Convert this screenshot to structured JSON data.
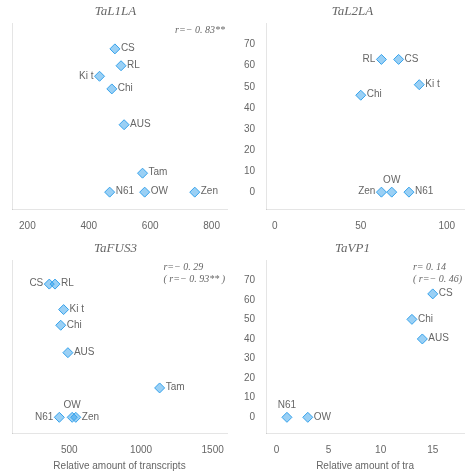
{
  "chart_data": [
    {
      "type": "scatter",
      "title": "TaL1LA",
      "xlim": [
        150,
        850
      ],
      "ylim": [
        -8,
        80
      ],
      "xticks": [
        200,
        400,
        600,
        800
      ],
      "tick_labels": "x",
      "grid": false,
      "annotation": "r=− 0. 83**",
      "series": [
        {
          "marker": "diamond",
          "x": [
            485,
            505,
            435,
            475,
            515,
            575,
            468,
            582,
            745
          ],
          "values": [
            68,
            60,
            55,
            49,
            32,
            9,
            0,
            0,
            0
          ],
          "labels": [
            "CS",
            "RL",
            "Ki t",
            "Chi",
            "AUS",
            "Tam",
            "N61",
            "OW",
            "Zen"
          ]
        }
      ]
    },
    {
      "type": "scatter",
      "title": "TaL2LA",
      "xlim": [
        -5,
        110
      ],
      "ylim": [
        -8,
        80
      ],
      "xticks": [
        0,
        50,
        100
      ],
      "yticks": [
        0,
        10,
        20,
        30,
        40,
        50,
        60,
        70
      ],
      "grid": false,
      "series": [
        {
          "marker": "diamond",
          "x": [
            62,
            72,
            84,
            50,
            62,
            68,
            78
          ],
          "values": [
            63,
            63,
            51,
            46,
            0,
            0,
            0
          ],
          "labels": [
            "RL",
            "CS",
            "Ki t",
            "Chi",
            "Zen",
            "OW",
            "N61"
          ]
        }
      ]
    },
    {
      "type": "scatter",
      "title": "TaFUS3",
      "xlim": [
        100,
        1600
      ],
      "ylim": [
        -8,
        80
      ],
      "xticks": [
        500,
        1000,
        1500
      ],
      "tick_labels": "x",
      "grid": false,
      "xlabel": "Relative amount of transcripts",
      "annotation": "r=− 0. 29\n( r=− 0. 93** )",
      "series": [
        {
          "marker": "diamond",
          "x": [
            360,
            400,
            460,
            440,
            490,
            1130,
            430,
            520,
            545
          ],
          "values": [
            68,
            68,
            55,
            47,
            33,
            15,
            0,
            0,
            0
          ],
          "labels": [
            "CS",
            "RL",
            "Ki t",
            "Chi",
            "AUS",
            "Tam",
            "N61",
            "OW",
            "Zen"
          ]
        }
      ]
    },
    {
      "type": "scatter",
      "title": "TaVP1",
      "xlim": [
        -1,
        18
      ],
      "ylim": [
        -8,
        80
      ],
      "xticks": [
        0,
        5,
        10,
        15
      ],
      "yticks": [
        0,
        10,
        20,
        30,
        40,
        50,
        60,
        70
      ],
      "grid": false,
      "xlabel": "Relative amount of tra",
      "annotation": "r= 0. 14\n( r=− 0. 46)",
      "series": [
        {
          "marker": "diamond",
          "x": [
            13,
            14,
            15,
            1,
            3
          ],
          "values": [
            50,
            40,
            63,
            0,
            0
          ],
          "labels": [
            "Chi",
            "AUS",
            "CS",
            "N61",
            "OW"
          ]
        }
      ]
    }
  ]
}
